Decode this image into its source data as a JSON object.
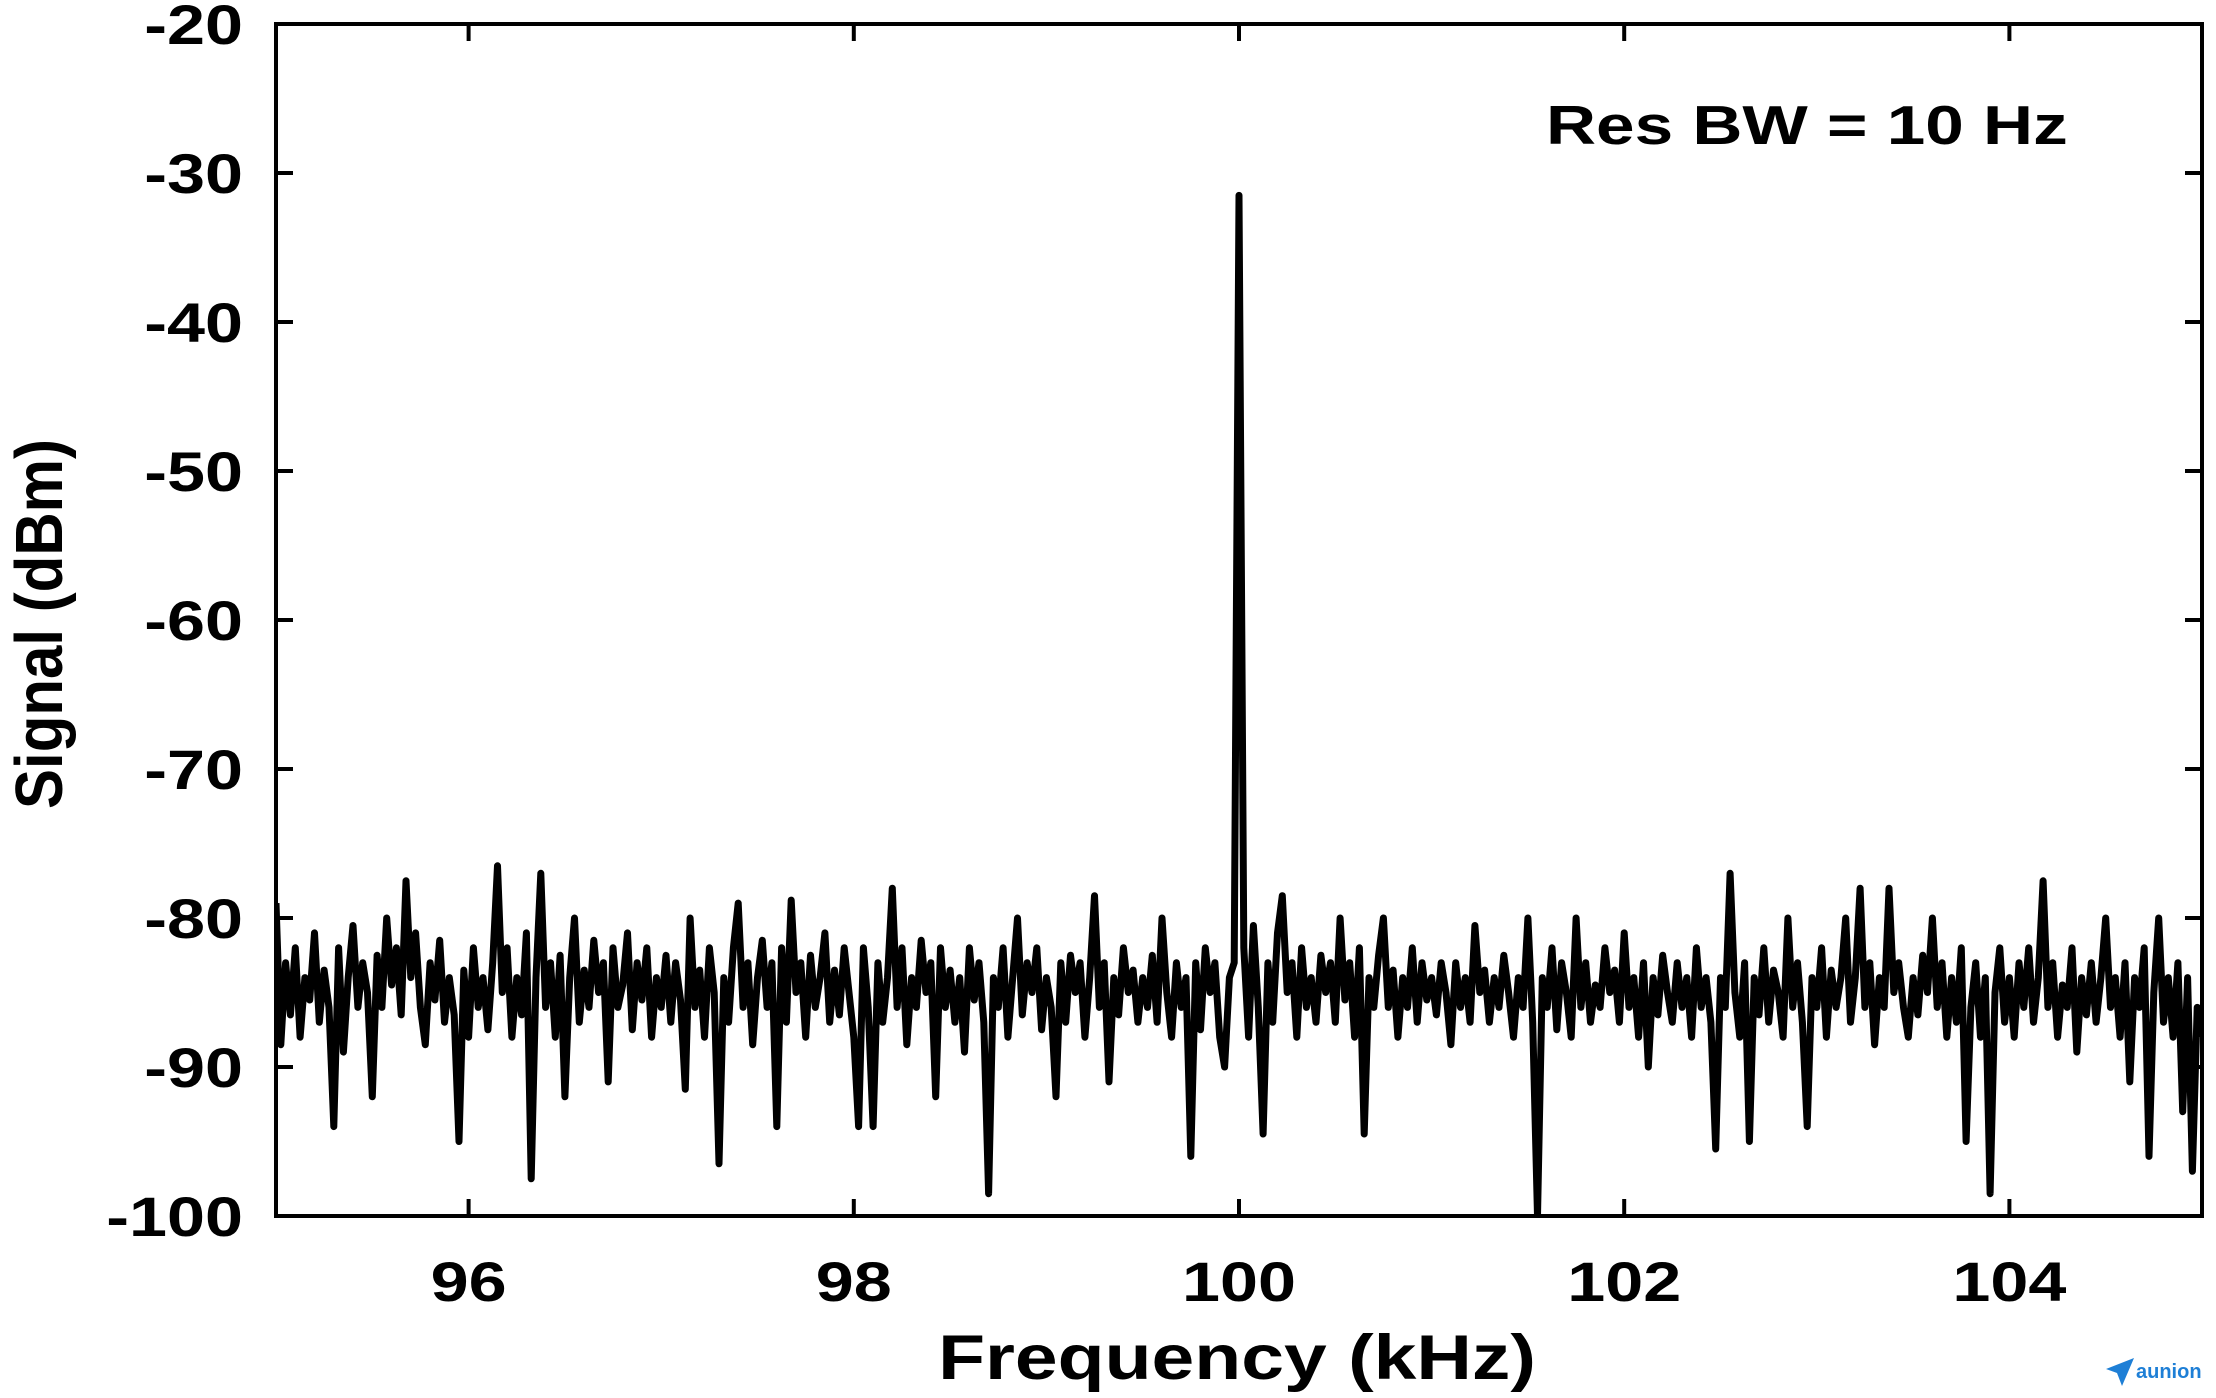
{
  "chart_data": {
    "type": "line",
    "title": "",
    "xlabel": "Frequency (kHz)",
    "ylabel": "Signal (dBm)",
    "xlim": [
      95,
      105
    ],
    "ylim": [
      -100,
      -20
    ],
    "xticks": [
      96,
      98,
      100,
      102,
      104
    ],
    "yticks": [
      -20,
      -30,
      -40,
      -50,
      -60,
      -70,
      -80,
      -90,
      -100
    ],
    "annotation": "Res BW = 10 Hz",
    "annotation_position": "top-right",
    "grid": false,
    "legend": "none",
    "axis_color": "#000000",
    "series": [
      {
        "color": "#000000",
        "x": [
          95,
          95.025,
          95.05,
          95.075,
          95.1,
          95.125,
          95.15,
          95.175,
          95.2,
          95.225,
          95.25,
          95.275,
          95.3,
          95.325,
          95.35,
          95.375,
          95.4,
          95.425,
          95.45,
          95.475,
          95.5,
          95.525,
          95.55,
          95.575,
          95.6,
          95.625,
          95.65,
          95.675,
          95.7,
          95.725,
          95.75,
          95.775,
          95.8,
          95.825,
          95.85,
          95.875,
          95.9,
          95.925,
          95.95,
          95.975,
          96,
          96.025,
          96.05,
          96.075,
          96.1,
          96.125,
          96.15,
          96.175,
          96.2,
          96.225,
          96.25,
          96.275,
          96.3,
          96.325,
          96.35,
          96.375,
          96.4,
          96.425,
          96.45,
          96.475,
          96.5,
          96.525,
          96.55,
          96.575,
          96.6,
          96.625,
          96.65,
          96.675,
          96.7,
          96.725,
          96.75,
          96.775,
          96.8,
          96.825,
          96.85,
          96.875,
          96.9,
          96.925,
          96.95,
          96.975,
          97,
          97.025,
          97.05,
          97.075,
          97.1,
          97.125,
          97.15,
          97.175,
          97.2,
          97.225,
          97.25,
          97.275,
          97.3,
          97.325,
          97.35,
          97.375,
          97.4,
          97.425,
          97.45,
          97.475,
          97.5,
          97.525,
          97.55,
          97.575,
          97.6,
          97.625,
          97.65,
          97.675,
          97.7,
          97.725,
          97.75,
          97.775,
          97.8,
          97.825,
          97.85,
          97.875,
          97.9,
          97.925,
          97.95,
          97.975,
          98,
          98.025,
          98.05,
          98.075,
          98.1,
          98.125,
          98.15,
          98.175,
          98.2,
          98.225,
          98.25,
          98.275,
          98.3,
          98.325,
          98.35,
          98.375,
          98.4,
          98.425,
          98.45,
          98.475,
          98.5,
          98.525,
          98.55,
          98.575,
          98.6,
          98.625,
          98.65,
          98.675,
          98.7,
          98.725,
          98.75,
          98.775,
          98.8,
          98.825,
          98.85,
          98.875,
          98.9,
          98.925,
          98.95,
          98.975,
          99,
          99.025,
          99.05,
          99.075,
          99.1,
          99.125,
          99.15,
          99.175,
          99.2,
          99.225,
          99.25,
          99.275,
          99.3,
          99.325,
          99.35,
          99.375,
          99.4,
          99.425,
          99.45,
          99.475,
          99.5,
          99.525,
          99.55,
          99.575,
          99.6,
          99.625,
          99.65,
          99.675,
          99.7,
          99.725,
          99.75,
          99.775,
          99.8,
          99.825,
          99.85,
          99.875,
          99.9,
          99.925,
          99.95,
          99.975,
          100,
          100.025,
          100.05,
          100.075,
          100.1,
          100.125,
          100.15,
          100.175,
          100.2,
          100.225,
          100.25,
          100.275,
          100.3,
          100.325,
          100.35,
          100.375,
          100.4,
          100.425,
          100.45,
          100.475,
          100.5,
          100.525,
          100.55,
          100.575,
          100.6,
          100.625,
          100.65,
          100.675,
          100.7,
          100.725,
          100.75,
          100.775,
          100.8,
          100.825,
          100.85,
          100.875,
          100.9,
          100.925,
          100.95,
          100.975,
          101,
          101.025,
          101.05,
          101.075,
          101.1,
          101.125,
          101.15,
          101.175,
          101.2,
          101.225,
          101.25,
          101.275,
          101.3,
          101.325,
          101.35,
          101.375,
          101.4,
          101.425,
          101.45,
          101.475,
          101.5,
          101.525,
          101.55,
          101.575,
          101.6,
          101.625,
          101.65,
          101.675,
          101.7,
          101.725,
          101.75,
          101.775,
          101.8,
          101.825,
          101.85,
          101.875,
          101.9,
          101.925,
          101.95,
          101.975,
          102,
          102.025,
          102.05,
          102.075,
          102.1,
          102.125,
          102.15,
          102.175,
          102.2,
          102.225,
          102.25,
          102.275,
          102.3,
          102.325,
          102.35,
          102.375,
          102.4,
          102.425,
          102.45,
          102.475,
          102.5,
          102.525,
          102.55,
          102.575,
          102.6,
          102.625,
          102.65,
          102.675,
          102.7,
          102.725,
          102.75,
          102.775,
          102.8,
          102.825,
          102.85,
          102.875,
          102.9,
          102.925,
          102.95,
          102.975,
          103,
          103.025,
          103.05,
          103.075,
          103.1,
          103.125,
          103.15,
          103.175,
          103.2,
          103.225,
          103.25,
          103.275,
          103.3,
          103.325,
          103.35,
          103.375,
          103.4,
          103.425,
          103.45,
          103.475,
          103.5,
          103.525,
          103.55,
          103.575,
          103.6,
          103.625,
          103.65,
          103.675,
          103.7,
          103.725,
          103.75,
          103.775,
          103.8,
          103.825,
          103.85,
          103.875,
          103.9,
          103.925,
          103.95,
          103.975,
          104,
          104.025,
          104.05,
          104.075,
          104.1,
          104.125,
          104.15,
          104.175,
          104.2,
          104.225,
          104.25,
          104.275,
          104.3,
          104.325,
          104.35,
          104.375,
          104.4,
          104.425,
          104.45,
          104.475,
          104.5,
          104.525,
          104.55,
          104.575,
          104.6,
          104.625,
          104.65,
          104.675,
          104.7,
          104.725,
          104.75,
          104.775,
          104.8,
          104.825,
          104.85,
          104.875,
          104.9,
          104.925,
          104.95,
          104.975,
          105
        ],
        "y": [
          -79,
          -88.5,
          -83,
          -86.5,
          -82,
          -88,
          -84,
          -85.5,
          -81,
          -87,
          -83.5,
          -86,
          -94,
          -82,
          -89,
          -84,
          -80.5,
          -86,
          -83,
          -85,
          -92,
          -82.5,
          -86,
          -80,
          -84.5,
          -82,
          -86.5,
          -77.5,
          -84,
          -81,
          -86,
          -88.5,
          -83,
          -85.5,
          -81.5,
          -87,
          -84,
          -86.5,
          -95,
          -83.5,
          -88,
          -82,
          -86,
          -84,
          -87.5,
          -83,
          -76.5,
          -85,
          -82,
          -88,
          -84,
          -86.5,
          -81,
          -97.5,
          -84,
          -77,
          -86,
          -83,
          -88,
          -82.5,
          -92,
          -84,
          -80,
          -87,
          -83.5,
          -86,
          -81.5,
          -85,
          -83,
          -91,
          -82,
          -86,
          -84.5,
          -81,
          -87.5,
          -83,
          -85.5,
          -82,
          -88,
          -84,
          -86,
          -82.5,
          -87,
          -83,
          -85.5,
          -91.5,
          -80,
          -86,
          -83.5,
          -88,
          -82,
          -85,
          -96.5,
          -84,
          -87,
          -82,
          -79,
          -86,
          -83,
          -88.5,
          -84,
          -81.5,
          -86,
          -83,
          -94,
          -82,
          -87,
          -78.8,
          -85,
          -83,
          -88,
          -82.5,
          -86,
          -84,
          -81,
          -87,
          -83.5,
          -86.5,
          -82,
          -85,
          -88,
          -94,
          -82,
          -86,
          -94,
          -83,
          -87,
          -84,
          -78,
          -86,
          -82,
          -88.5,
          -84,
          -86,
          -81.5,
          -85,
          -83,
          -92,
          -82,
          -86,
          -83.5,
          -87,
          -84,
          -89,
          -82,
          -85.5,
          -83,
          -87,
          -98.5,
          -84,
          -86,
          -82,
          -88,
          -84,
          -80,
          -86.5,
          -83,
          -85,
          -82,
          -87.5,
          -84,
          -86,
          -92,
          -83,
          -87,
          -82.5,
          -85,
          -83,
          -88,
          -84,
          -78.5,
          -86,
          -83,
          -91,
          -84,
          -86.5,
          -82,
          -85,
          -83.5,
          -87,
          -84,
          -86,
          -82.5,
          -87,
          -80,
          -85,
          -88,
          -83,
          -86,
          -84,
          -96,
          -83,
          -87.5,
          -82,
          -85,
          -83,
          -88,
          -90,
          -84,
          -83,
          -31.5,
          -82,
          -88,
          -80.5,
          -86,
          -94.5,
          -83,
          -87,
          -81,
          -78.5,
          -85,
          -83,
          -88,
          -82,
          -86,
          -84,
          -87,
          -82.5,
          -85,
          -83,
          -87,
          -80,
          -85.5,
          -83,
          -88,
          -82,
          -94.5,
          -84,
          -86,
          -82.5,
          -80,
          -86,
          -83.5,
          -88,
          -84,
          -86,
          -82,
          -87,
          -83,
          -85.5,
          -84,
          -86.5,
          -83,
          -85,
          -88.5,
          -83,
          -86,
          -84,
          -87,
          -80.5,
          -85,
          -83.5,
          -87,
          -84,
          -86,
          -82.5,
          -85,
          -88,
          -84,
          -86,
          -80,
          -87,
          -100,
          -84,
          -86,
          -82,
          -87.5,
          -83,
          -85,
          -88,
          -80,
          -86,
          -83,
          -87,
          -84.5,
          -86,
          -82,
          -85,
          -83.5,
          -87,
          -81,
          -86,
          -84,
          -88,
          -83,
          -90,
          -84,
          -86.5,
          -82.5,
          -85,
          -87,
          -83,
          -86,
          -84,
          -88,
          -82,
          -86,
          -84,
          -87,
          -95.5,
          -84,
          -86,
          -77,
          -85,
          -88,
          -83,
          -95,
          -84,
          -86.5,
          -82,
          -87,
          -83.5,
          -85,
          -88,
          -80,
          -86,
          -83,
          -87,
          -94,
          -84,
          -86,
          -82,
          -88,
          -83.5,
          -86,
          -84,
          -80,
          -87,
          -84,
          -78,
          -86,
          -83,
          -88.5,
          -84,
          -86,
          -78,
          -85,
          -83,
          -86,
          -88,
          -84,
          -86.5,
          -82.5,
          -85,
          -80,
          -86,
          -83,
          -88,
          -84,
          -87,
          -82,
          -95,
          -86,
          -83,
          -88,
          -84,
          -98.5,
          -85,
          -82,
          -87,
          -84,
          -88,
          -83,
          -86,
          -82,
          -87,
          -84,
          -77.5,
          -86,
          -83,
          -88,
          -84.5,
          -86,
          -82,
          -89,
          -84,
          -86.5,
          -83,
          -87,
          -84,
          -80,
          -86,
          -84,
          -88,
          -83,
          -91,
          -84,
          -86,
          -82,
          -96,
          -85,
          -80,
          -87,
          -84,
          -88,
          -83,
          -93,
          -84,
          -97,
          -86,
          -88
        ]
      }
    ]
  },
  "watermark": {
    "text": "aunion",
    "color": "#1e7fd6",
    "icon": "paper-plane-icon"
  }
}
